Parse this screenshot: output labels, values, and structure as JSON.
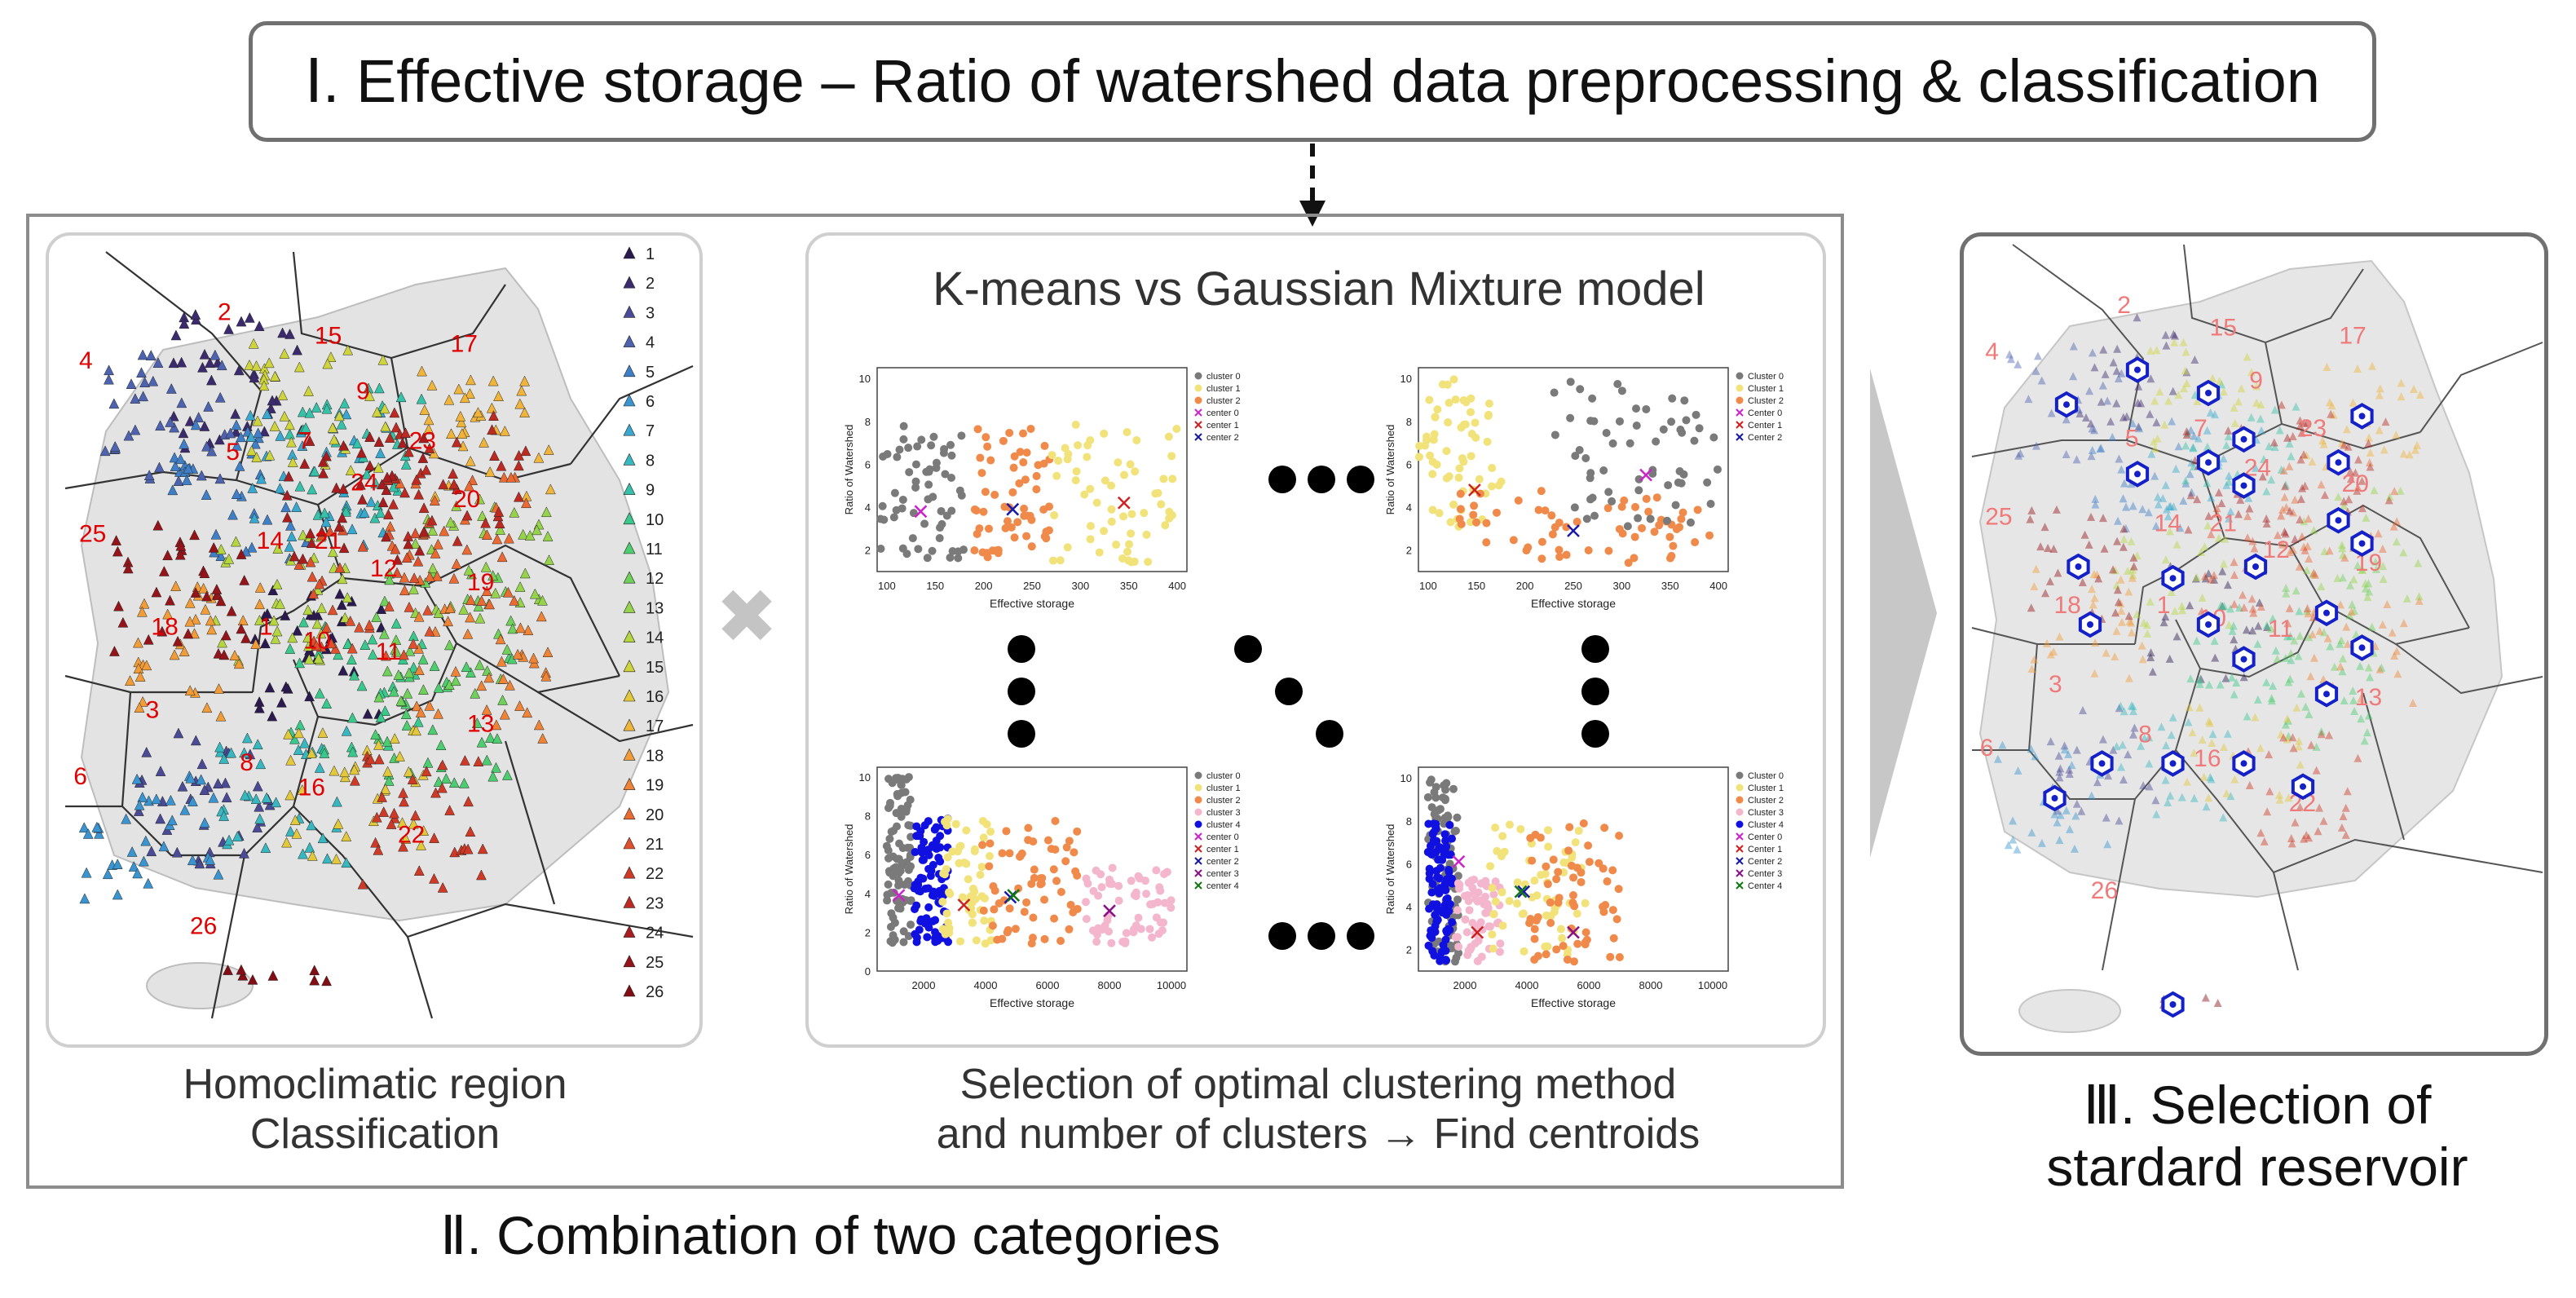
{
  "step1": {
    "label": "Ⅰ. Effective storage – Ratio of watershed data preprocessing & classification"
  },
  "step2": {
    "label": "Ⅱ. Combination of two categories",
    "left_caption_1": "Homoclimatic region",
    "left_caption_2": "Classification",
    "mid_title": "K-means vs Gaussian Mixture model",
    "mid_caption_1": "Selection of optimal clustering method",
    "mid_caption_2": "and number of clusters → Find centroids",
    "combine_symbol": "✖"
  },
  "step3": {
    "label_1": "Ⅲ. Selection of",
    "label_2": "stardard reservoir"
  },
  "regions": {
    "legend": [
      "1",
      "2",
      "3",
      "4",
      "5",
      "6",
      "7",
      "8",
      "9",
      "10",
      "11",
      "12",
      "13",
      "14",
      "15",
      "16",
      "17",
      "18",
      "19",
      "20",
      "21",
      "22",
      "23",
      "24",
      "25",
      "26"
    ],
    "legend_colors": [
      "#2b1a4f",
      "#3c2a6e",
      "#4a4a96",
      "#4d63b0",
      "#3f7fc8",
      "#3a94d0",
      "#38a8cf",
      "#37b8c0",
      "#36c2a8",
      "#3ac98d",
      "#4ccd6f",
      "#6fd15a",
      "#95d44a",
      "#b6d640",
      "#cfd43c",
      "#e2c83a",
      "#f0b43a",
      "#f29c38",
      "#f08436",
      "#ea6a32",
      "#df502c",
      "#cf3a26",
      "#bd2a22",
      "#a91d1e",
      "#951419",
      "#820d14"
    ],
    "map_labels": [
      {
        "id": "2",
        "text": "2"
      },
      {
        "id": "15",
        "text": "15"
      },
      {
        "id": "17",
        "text": "17"
      },
      {
        "id": "4",
        "text": "4"
      },
      {
        "id": "9",
        "text": "9"
      },
      {
        "id": "23",
        "text": "23"
      },
      {
        "id": "5",
        "text": "5"
      },
      {
        "id": "7",
        "text": "7"
      },
      {
        "id": "24",
        "text": "24"
      },
      {
        "id": "20",
        "text": "20"
      },
      {
        "id": "25",
        "text": "25"
      },
      {
        "id": "14",
        "text": "14"
      },
      {
        "id": "21",
        "text": "21"
      },
      {
        "id": "12",
        "text": "12"
      },
      {
        "id": "19",
        "text": "19"
      },
      {
        "id": "18",
        "text": "18"
      },
      {
        "id": "1",
        "text": "1"
      },
      {
        "id": "10",
        "text": "10"
      },
      {
        "id": "11",
        "text": "11"
      },
      {
        "id": "3",
        "text": "3"
      },
      {
        "id": "13",
        "text": "13"
      },
      {
        "id": "8",
        "text": "8"
      },
      {
        "id": "16",
        "text": "16"
      },
      {
        "id": "6",
        "text": "6"
      },
      {
        "id": "22",
        "text": "22"
      },
      {
        "id": "26",
        "text": "26"
      }
    ]
  },
  "chart_data": [
    {
      "type": "scatter",
      "name": "kmeans-3",
      "xlabel": "Effective storage",
      "ylabel": "Ratio of Watershed",
      "xticks": [
        "100",
        "150",
        "200",
        "250",
        "300",
        "350",
        "400"
      ],
      "yticks": [
        "2",
        "4",
        "6",
        "8",
        "10"
      ],
      "xlim": [
        90,
        410
      ],
      "ylim": [
        1,
        10.5
      ],
      "legend": [
        "cluster 0",
        "cluster 1",
        "cluster 2",
        "center 0",
        "center 1",
        "center 2"
      ],
      "series_colors": [
        "#7a7a7a",
        "#f1e27a",
        "#f08a4b"
      ],
      "center_colors": [
        "#cc22cc",
        "#cc2222",
        "#1a1aa8"
      ],
      "clusters": [
        [
          90,
          180,
          "c0"
        ],
        [
          190,
          270,
          "c2"
        ],
        [
          270,
          400,
          "c1"
        ]
      ],
      "centers": [
        [
          135,
          3.8
        ],
        [
          345,
          4.2
        ],
        [
          230,
          3.9
        ]
      ]
    },
    {
      "type": "scatter",
      "name": "gmm-3",
      "xlabel": "Effective storage",
      "ylabel": "Ratio of Watershed",
      "xticks": [
        "100",
        "150",
        "200",
        "250",
        "300",
        "350",
        "400"
      ],
      "yticks": [
        "2",
        "4",
        "6",
        "8",
        "10"
      ],
      "xlim": [
        90,
        410
      ],
      "ylim": [
        1,
        10.5
      ],
      "legend": [
        "Cluster 0",
        "Cluster 1",
        "Cluster 2",
        "Center 0",
        "Center 1",
        "Center 2"
      ],
      "series_colors": [
        "#7a7a7a",
        "#f1e27a",
        "#f08a4b"
      ],
      "center_colors": [
        "#cc22cc",
        "#cc2222",
        "#1a1aa8"
      ],
      "clusters": [
        [
          90,
          180,
          "c1hi"
        ],
        [
          120,
          400,
          "c2lo"
        ],
        [
          230,
          400,
          "c0hi"
        ]
      ],
      "centers": [
        [
          325,
          5.5
        ],
        [
          148,
          4.8
        ],
        [
          250,
          2.9
        ]
      ]
    },
    {
      "type": "scatter",
      "name": "kmeans-5",
      "xlabel": "Effective storage",
      "ylabel": "Ratio of Watershed",
      "xticks": [
        "2000",
        "4000",
        "6000",
        "8000",
        "10000"
      ],
      "yticks": [
        "0",
        "2",
        "4",
        "6",
        "8",
        "10"
      ],
      "xlim": [
        500,
        10500
      ],
      "ylim": [
        0,
        10.5
      ],
      "legend": [
        "cluster 0",
        "cluster 1",
        "cluster 2",
        "cluster 3",
        "cluster 4",
        "center 0",
        "center 1",
        "center 2",
        "center 3",
        "center 4"
      ],
      "series_colors": [
        "#7a7a7a",
        "#f1e27a",
        "#f08a4b",
        "#f4b6cc",
        "#1010e0"
      ],
      "center_colors": [
        "#cc22cc",
        "#cc2222",
        "#1a1aa8",
        "#881188",
        "#117711"
      ],
      "clusters": [
        [
          800,
          1600,
          "g"
        ],
        [
          1700,
          2800,
          "b"
        ],
        [
          2600,
          4200,
          "y"
        ],
        [
          3800,
          7000,
          "o"
        ],
        [
          7000,
          10000,
          "p"
        ]
      ],
      "centers": [
        [
          1200,
          3.9
        ],
        [
          3300,
          3.4
        ],
        [
          4800,
          3.8
        ],
        [
          8000,
          3.1
        ],
        [
          4900,
          3.9
        ]
      ]
    },
    {
      "type": "scatter",
      "name": "gmm-5",
      "xlabel": "Effective storage",
      "ylabel": "Ratio of Watershed",
      "xticks": [
        "2000",
        "4000",
        "6000",
        "8000",
        "10000"
      ],
      "yticks": [
        "2",
        "4",
        "6",
        "8",
        "10"
      ],
      "xlim": [
        500,
        10500
      ],
      "ylim": [
        1,
        10.5
      ],
      "legend": [
        "Cluster 0",
        "Cluster 1",
        "Cluster 2",
        "Cluster 3",
        "Cluster 4",
        "Center 0",
        "Center 1",
        "Center 2",
        "Center 3",
        "Center 4"
      ],
      "series_colors": [
        "#7a7a7a",
        "#f1e27a",
        "#f08a4b",
        "#f4b6cc",
        "#1010e0"
      ],
      "center_colors": [
        "#cc22cc",
        "#cc2222",
        "#1a1aa8",
        "#881188",
        "#117711"
      ],
      "clusters": [
        [
          800,
          1800,
          "g"
        ],
        [
          800,
          1600,
          "b"
        ],
        [
          1700,
          3200,
          "p"
        ],
        [
          2800,
          6000,
          "y"
        ],
        [
          4000,
          7000,
          "o"
        ]
      ],
      "centers": [
        [
          1800,
          6.1
        ],
        [
          2400,
          2.8
        ],
        [
          3900,
          4.7
        ],
        [
          5500,
          2.8
        ],
        [
          3800,
          4.7
        ]
      ]
    }
  ]
}
